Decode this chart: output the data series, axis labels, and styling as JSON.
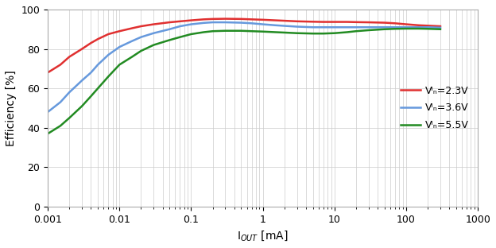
{
  "xlabel": "I$_{OUT}$ [mA]",
  "ylabel": "Efficiency [%]",
  "xlim": [
    0.001,
    1000
  ],
  "ylim": [
    0,
    100
  ],
  "yticks": [
    0,
    20,
    40,
    60,
    80,
    100
  ],
  "background_color": "#ffffff",
  "grid_color": "#cccccc",
  "series": [
    {
      "label": "Vᴵₙ=2.3V",
      "color": "#e03030",
      "x": [
        0.001,
        0.0015,
        0.002,
        0.003,
        0.004,
        0.005,
        0.007,
        0.01,
        0.015,
        0.02,
        0.03,
        0.05,
        0.07,
        0.1,
        0.15,
        0.2,
        0.3,
        0.5,
        0.7,
        1.0,
        1.5,
        2.0,
        3.0,
        5.0,
        7.0,
        10,
        15,
        20,
        30,
        50,
        70,
        100,
        150,
        200,
        300
      ],
      "y": [
        68,
        72,
        76,
        80,
        83,
        85,
        87.5,
        89,
        90.5,
        91.5,
        92.5,
        93.5,
        94.0,
        94.5,
        95.0,
        95.2,
        95.3,
        95.2,
        95.0,
        94.8,
        94.5,
        94.3,
        94.0,
        93.8,
        93.7,
        93.7,
        93.7,
        93.6,
        93.5,
        93.3,
        93.0,
        92.5,
        92.0,
        91.8,
        91.5
      ]
    },
    {
      "label": "Vᴵₙ=3.6V",
      "color": "#6699dd",
      "x": [
        0.001,
        0.0015,
        0.002,
        0.003,
        0.004,
        0.005,
        0.007,
        0.01,
        0.015,
        0.02,
        0.03,
        0.05,
        0.07,
        0.1,
        0.15,
        0.2,
        0.3,
        0.5,
        0.7,
        1.0,
        1.5,
        2.0,
        3.0,
        5.0,
        7.0,
        10,
        15,
        20,
        30,
        50,
        70,
        100,
        150,
        200,
        300
      ],
      "y": [
        48,
        53,
        58,
        64,
        68,
        72,
        77,
        81,
        84,
        86,
        88,
        90,
        91.5,
        92.5,
        93.2,
        93.5,
        93.5,
        93.3,
        93.0,
        92.5,
        92.0,
        91.7,
        91.3,
        91.0,
        91.0,
        91.0,
        91.0,
        91.0,
        91.0,
        91.0,
        91.0,
        91.0,
        91.0,
        91.0,
        90.8
      ]
    },
    {
      "label": "Vᴵₙ=5.5V",
      "color": "#228b22",
      "x": [
        0.001,
        0.0015,
        0.002,
        0.003,
        0.004,
        0.005,
        0.007,
        0.01,
        0.015,
        0.02,
        0.03,
        0.05,
        0.07,
        0.1,
        0.15,
        0.2,
        0.3,
        0.5,
        0.7,
        1.0,
        1.5,
        2.0,
        3.0,
        5.0,
        7.0,
        10,
        15,
        20,
        30,
        50,
        70,
        100,
        150,
        200,
        300
      ],
      "y": [
        37,
        41,
        45,
        51,
        56,
        60,
        66,
        72,
        76,
        79,
        82,
        84.5,
        86.0,
        87.5,
        88.5,
        89.0,
        89.2,
        89.2,
        89.0,
        88.8,
        88.5,
        88.3,
        88.0,
        87.8,
        87.8,
        88.0,
        88.5,
        89.0,
        89.5,
        90.0,
        90.2,
        90.3,
        90.3,
        90.2,
        90.0
      ]
    }
  ]
}
